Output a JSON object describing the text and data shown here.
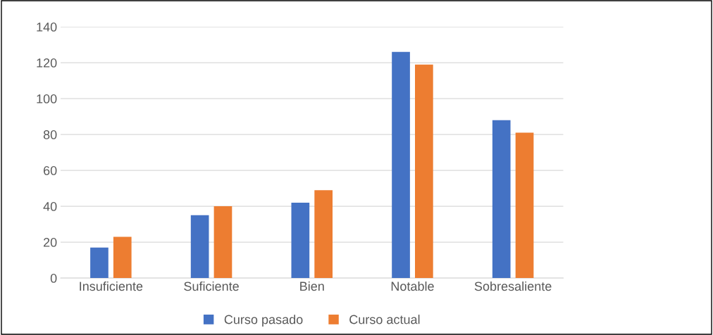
{
  "chart_data": {
    "type": "bar",
    "categories": [
      "Insuficiente",
      "Suficiente",
      "Bien",
      "Notable",
      "Sobresaliente"
    ],
    "series": [
      {
        "name": "Curso pasado",
        "color": "#4472c4",
        "values": [
          17,
          35,
          42,
          126,
          88
        ]
      },
      {
        "name": "Curso actual",
        "color": "#ed7d31",
        "values": [
          23,
          40,
          49,
          119,
          81
        ]
      }
    ],
    "ylim": [
      0,
      140
    ],
    "yticks": [
      0,
      20,
      40,
      60,
      80,
      100,
      120,
      140
    ],
    "grid": "y",
    "legend": "bottom"
  }
}
